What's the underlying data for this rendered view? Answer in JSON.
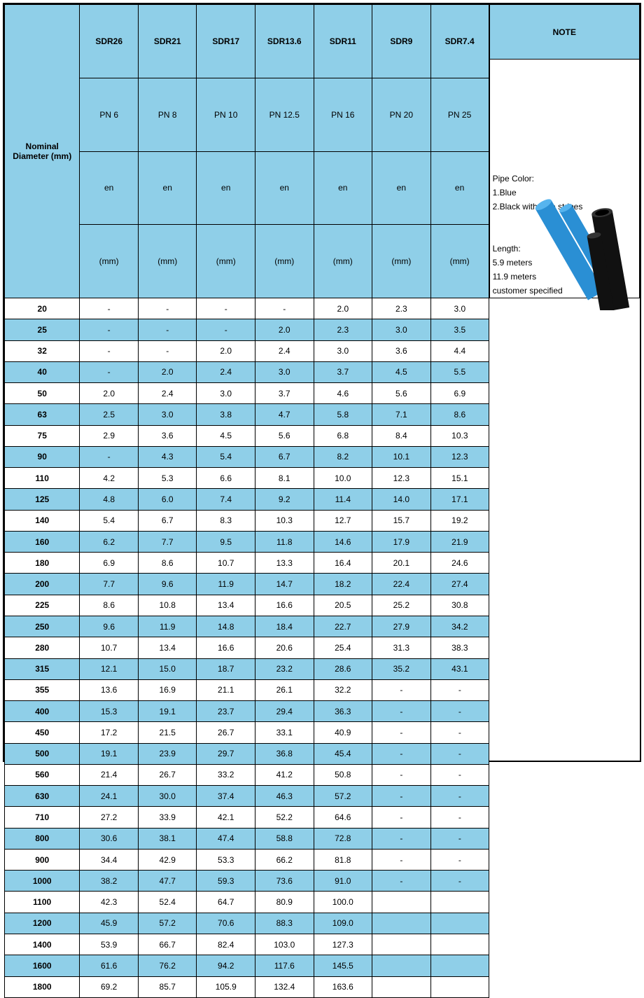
{
  "header": {
    "nominal": "Nominal Diameter (mm)",
    "note": "NOTE",
    "sdr": [
      "SDR26",
      "SDR21",
      "SDR17",
      "SDR13.6",
      "SDR11",
      "SDR9",
      "SDR7.4"
    ],
    "pn": [
      "PN 6",
      "PN 8",
      "PN 10",
      "PN 12.5",
      "PN 16",
      "PN 20",
      "PN 25"
    ],
    "en_label": "en",
    "en_unit": "(mm)",
    "bg_head": "#8fcfe8"
  },
  "notes": {
    "l1": "Pipe Color:",
    "l2": "1.Blue",
    "l3": "2.Black with blue stripes",
    "l4": "Length:",
    "l5": "5.9 meters",
    "l6": "11.9 meters",
    "l7": "customer specified"
  },
  "rows": [
    {
      "d": "20",
      "v": [
        "-",
        "-",
        "-",
        "-",
        "2.0",
        "2.3",
        "3.0"
      ],
      "alt": false
    },
    {
      "d": "25",
      "v": [
        "-",
        "-",
        "-",
        "2.0",
        "2.3",
        "3.0",
        "3.5"
      ],
      "alt": true
    },
    {
      "d": "32",
      "v": [
        "-",
        "-",
        "2.0",
        "2.4",
        "3.0",
        "3.6",
        "4.4"
      ],
      "alt": false
    },
    {
      "d": "40",
      "v": [
        "-",
        "2.0",
        "2.4",
        "3.0",
        "3.7",
        "4.5",
        "5.5"
      ],
      "alt": true
    },
    {
      "d": "50",
      "v": [
        "2.0",
        "2.4",
        "3.0",
        "3.7",
        "4.6",
        "5.6",
        "6.9"
      ],
      "alt": false
    },
    {
      "d": "63",
      "v": [
        "2.5",
        "3.0",
        "3.8",
        "4.7",
        "5.8",
        "7.1",
        "8.6"
      ],
      "alt": true
    },
    {
      "d": "75",
      "v": [
        "2.9",
        "3.6",
        "4.5",
        "5.6",
        "6.8",
        "8.4",
        "10.3"
      ],
      "alt": false
    },
    {
      "d": "90",
      "v": [
        "-",
        "4.3",
        "5.4",
        "6.7",
        "8.2",
        "10.1",
        "12.3"
      ],
      "alt": true
    },
    {
      "d": "110",
      "v": [
        "4.2",
        "5.3",
        "6.6",
        "8.1",
        "10.0",
        "12.3",
        "15.1"
      ],
      "alt": false
    },
    {
      "d": "125",
      "v": [
        "4.8",
        "6.0",
        "7.4",
        "9.2",
        "11.4",
        "14.0",
        "17.1"
      ],
      "alt": true
    },
    {
      "d": "140",
      "v": [
        "5.4",
        "6.7",
        "8.3",
        "10.3",
        "12.7",
        "15.7",
        "19.2"
      ],
      "alt": false
    },
    {
      "d": "160",
      "v": [
        "6.2",
        "7.7",
        "9.5",
        "11.8",
        "14.6",
        "17.9",
        "21.9"
      ],
      "alt": true
    },
    {
      "d": "180",
      "v": [
        "6.9",
        "8.6",
        "10.7",
        "13.3",
        "16.4",
        "20.1",
        "24.6"
      ],
      "alt": false
    },
    {
      "d": "200",
      "v": [
        "7.7",
        "9.6",
        "11.9",
        "14.7",
        "18.2",
        "22.4",
        "27.4"
      ],
      "alt": true
    },
    {
      "d": "225",
      "v": [
        "8.6",
        "10.8",
        "13.4",
        "16.6",
        "20.5",
        "25.2",
        "30.8"
      ],
      "alt": false
    },
    {
      "d": "250",
      "v": [
        "9.6",
        "11.9",
        "14.8",
        "18.4",
        "22.7",
        "27.9",
        "34.2"
      ],
      "alt": true
    },
    {
      "d": "280",
      "v": [
        "10.7",
        "13.4",
        "16.6",
        "20.6",
        "25.4",
        "31.3",
        "38.3"
      ],
      "alt": false
    },
    {
      "d": "315",
      "v": [
        "12.1",
        "15.0",
        "18.7",
        "23.2",
        "28.6",
        "35.2",
        "43.1"
      ],
      "alt": true
    },
    {
      "d": "355",
      "v": [
        "13.6",
        "16.9",
        "21.1",
        "26.1",
        "32.2",
        "-",
        "-"
      ],
      "alt": false
    },
    {
      "d": "400",
      "v": [
        "15.3",
        "19.1",
        "23.7",
        "29.4",
        "36.3",
        "-",
        "-"
      ],
      "alt": true
    },
    {
      "d": "450",
      "v": [
        "17.2",
        "21.5",
        "26.7",
        "33.1",
        "40.9",
        "-",
        "-"
      ],
      "alt": false
    },
    {
      "d": "500",
      "v": [
        "19.1",
        "23.9",
        "29.7",
        "36.8",
        "45.4",
        "-",
        "-"
      ],
      "alt": true
    },
    {
      "d": "560",
      "v": [
        "21.4",
        "26.7",
        "33.2",
        "41.2",
        "50.8",
        "-",
        "-"
      ],
      "alt": false
    },
    {
      "d": "630",
      "v": [
        "24.1",
        "30.0",
        "37.4",
        "46.3",
        "57.2",
        "-",
        "-"
      ],
      "alt": true
    },
    {
      "d": "710",
      "v": [
        "27.2",
        "33.9",
        "42.1",
        "52.2",
        "64.6",
        "-",
        "-"
      ],
      "alt": false
    },
    {
      "d": "800",
      "v": [
        "30.6",
        "38.1",
        "47.4",
        "58.8",
        "72.8",
        "-",
        "-"
      ],
      "alt": true
    },
    {
      "d": "900",
      "v": [
        "34.4",
        "42.9",
        "53.3",
        "66.2",
        "81.8",
        "-",
        "-"
      ],
      "alt": false
    },
    {
      "d": "1000",
      "v": [
        "38.2",
        "47.7",
        "59.3",
        "73.6",
        "91.0",
        "-",
        "-"
      ],
      "alt": true
    },
    {
      "d": "1100",
      "v": [
        "42.3",
        "52.4",
        "64.7",
        "80.9",
        "100.0",
        "",
        ""
      ],
      "alt": false
    },
    {
      "d": "1200",
      "v": [
        "45.9",
        "57.2",
        "70.6",
        "88.3",
        "109.0",
        "",
        ""
      ],
      "alt": true
    },
    {
      "d": "1400",
      "v": [
        "53.9",
        "66.7",
        "82.4",
        "103.0",
        "127.3",
        "",
        ""
      ],
      "alt": false
    },
    {
      "d": "1600",
      "v": [
        "61.6",
        "76.2",
        "94.2",
        "117.6",
        "145.5",
        "",
        ""
      ],
      "alt": true
    },
    {
      "d": "1800",
      "v": [
        "69.2",
        "85.7",
        "105.9",
        "132.4",
        "163.6",
        "",
        ""
      ],
      "alt": false
    }
  ],
  "colors": {
    "blue": "#8fcfe8",
    "border": "#000000",
    "text": "#000000",
    "pipe_blue": "#2a8fd4",
    "pipe_black": "#111111"
  }
}
